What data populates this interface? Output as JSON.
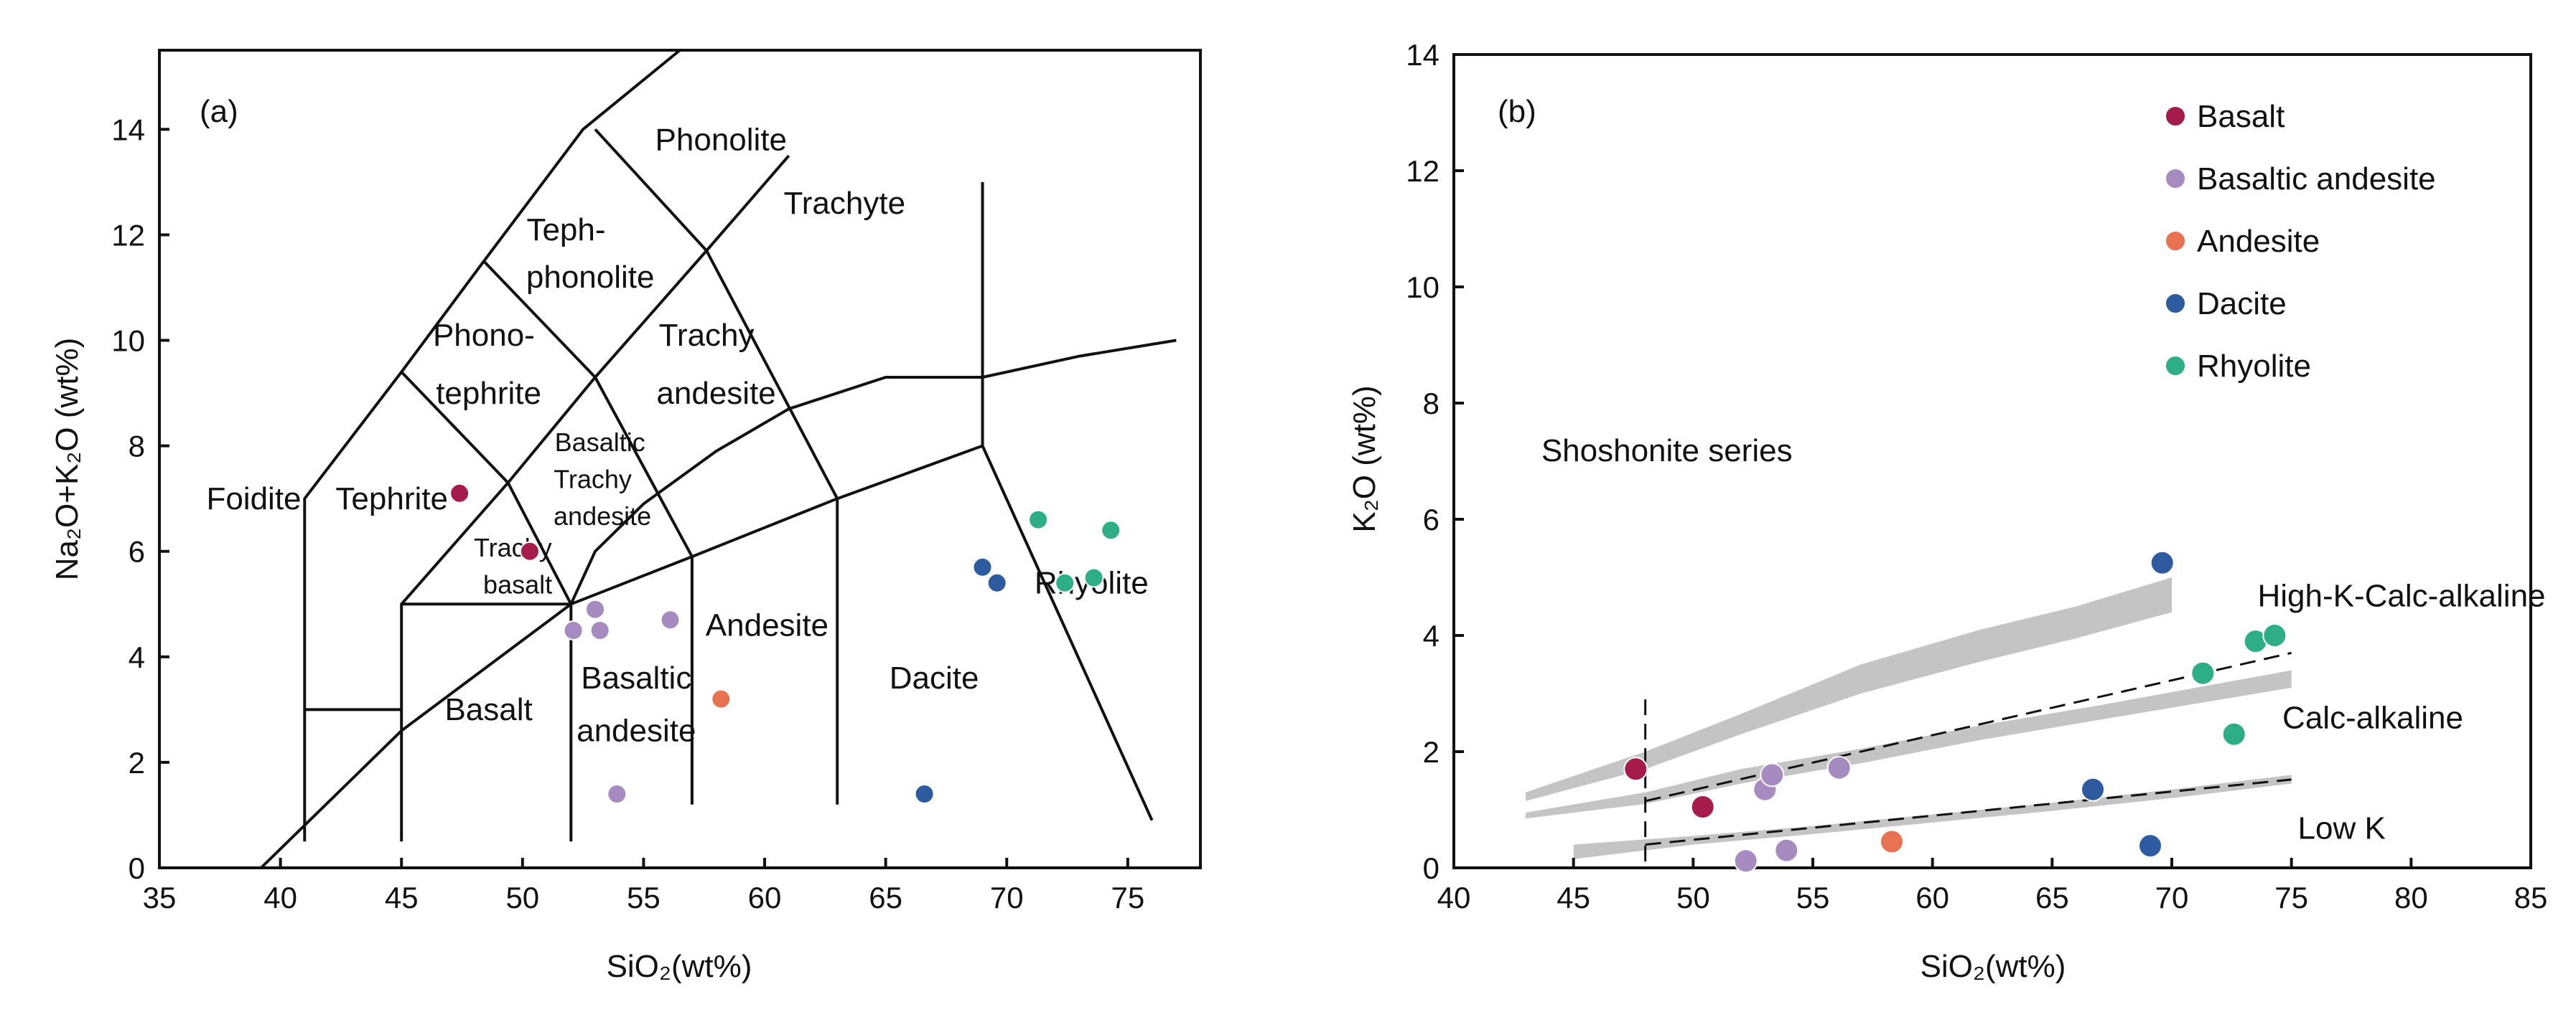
{
  "chart_data": [
    {
      "type": "scatter",
      "panel_label": "(a)",
      "xlabel": "SiO₂(wt%)",
      "ylabel": "Na₂O+K₂O (wt%)",
      "xlim": [
        35,
        78
      ],
      "ylim": [
        0,
        15.5
      ],
      "xticks": [
        35,
        40,
        45,
        50,
        55,
        60,
        65,
        70,
        75
      ],
      "yticks": [
        0,
        2,
        4,
        6,
        8,
        10,
        12,
        14
      ],
      "field_labels": [
        {
          "id": "foidite",
          "text": "Foidite",
          "x": 38.9,
          "y": 6.8,
          "small": false
        },
        {
          "id": "tephrite",
          "text": "Tephrite",
          "x": 44.6,
          "y": 6.8,
          "small": false
        },
        {
          "id": "phonolite",
          "text": "Phonolite",
          "x": 58.2,
          "y": 13.6,
          "small": false
        },
        {
          "id": "teph_a",
          "text": "Teph-",
          "x": 51.8,
          "y": 11.9,
          "small": false
        },
        {
          "id": "teph_b",
          "text": "phonolite",
          "x": 52.8,
          "y": 11.0,
          "small": false
        },
        {
          "id": "trachyte",
          "text": "Trachyte",
          "x": 63.3,
          "y": 12.4,
          "small": false
        },
        {
          "id": "phono_a",
          "text": "Phono-",
          "x": 48.4,
          "y": 9.9,
          "small": false
        },
        {
          "id": "phono_b",
          "text": "tephrite",
          "x": 48.6,
          "y": 8.8,
          "small": false
        },
        {
          "id": "trachyand_a",
          "text": "Trachy",
          "x": 57.6,
          "y": 9.9,
          "small": false
        },
        {
          "id": "trachyand_b",
          "text": "andesite",
          "x": 58.0,
          "y": 8.8,
          "small": false
        },
        {
          "id": "bta_a",
          "text": "Basaltic",
          "x": 53.2,
          "y": 7.9,
          "small": true
        },
        {
          "id": "bta_b",
          "text": "Trachy",
          "x": 52.9,
          "y": 7.2,
          "small": true
        },
        {
          "id": "bta_c",
          "text": "andesite",
          "x": 53.3,
          "y": 6.5,
          "small": true
        },
        {
          "id": "tb_a",
          "text": "Trachy",
          "x": 49.6,
          "y": 5.9,
          "small": true
        },
        {
          "id": "tb_b",
          "text": "basalt",
          "x": 49.8,
          "y": 5.2,
          "small": true
        },
        {
          "id": "basalt",
          "text": "Basalt",
          "x": 48.6,
          "y": 2.8,
          "small": false
        },
        {
          "id": "band_a",
          "text": "Basaltic",
          "x": 54.7,
          "y": 3.4,
          "small": false
        },
        {
          "id": "band_b",
          "text": "andesite",
          "x": 54.7,
          "y": 2.4,
          "small": false
        },
        {
          "id": "andesite",
          "text": "Andesite",
          "x": 60.1,
          "y": 4.4,
          "small": false
        },
        {
          "id": "dacite",
          "text": "Dacite",
          "x": 67.0,
          "y": 3.4,
          "small": false
        },
        {
          "id": "rhyolite",
          "text": "Rhyolite",
          "x": 73.5,
          "y": 5.2,
          "small": false
        }
      ],
      "series": [
        {
          "name": "Basalt",
          "color": "#a51c4b",
          "points": [
            [
              47.4,
              7.1
            ],
            [
              50.3,
              6.0
            ]
          ]
        },
        {
          "name": "Basaltic andesite",
          "color": "#a58bbf",
          "points": [
            [
              52.1,
              4.5
            ],
            [
              53.0,
              4.9
            ],
            [
              53.2,
              4.5
            ],
            [
              56.1,
              4.7
            ],
            [
              53.9,
              1.4
            ]
          ]
        },
        {
          "name": "Andesite",
          "color": "#e87352",
          "points": [
            [
              58.2,
              3.2
            ]
          ]
        },
        {
          "name": "Dacite",
          "color": "#2e5a9f",
          "points": [
            [
              69.0,
              5.7
            ],
            [
              69.6,
              5.4
            ],
            [
              66.6,
              1.4
            ]
          ]
        },
        {
          "name": "Rhyolite",
          "color": "#2eae85",
          "points": [
            [
              71.3,
              6.6
            ],
            [
              74.3,
              6.4
            ],
            [
              72.4,
              5.4
            ],
            [
              73.6,
              5.5
            ]
          ]
        }
      ]
    },
    {
      "type": "scatter",
      "panel_label": "(b)",
      "xlabel": "SiO₂(wt%)",
      "ylabel": "K₂O (wt%)",
      "xlim": [
        40,
        85
      ],
      "ylim": [
        0,
        14
      ],
      "xticks": [
        40,
        45,
        50,
        55,
        60,
        65,
        70,
        75,
        80,
        85
      ],
      "yticks": [
        0,
        2,
        4,
        6,
        8,
        10,
        12,
        14
      ],
      "series_labels": [
        {
          "id": "shoshonite",
          "text": "Shoshonite series",
          "x": 48.9,
          "y": 7.0
        },
        {
          "id": "highk",
          "text": "High-K-Calc-alkaline",
          "x": 79.6,
          "y": 4.5
        },
        {
          "id": "calcalk",
          "text": "Calc-alkaline",
          "x": 78.4,
          "y": 2.4
        },
        {
          "id": "lowk",
          "text": "Low K",
          "x": 77.1,
          "y": 0.5
        }
      ],
      "legend": {
        "position": "top-right",
        "entries": [
          "Basalt",
          "Basaltic andesite",
          "Andesite",
          "Dacite",
          "Rhyolite"
        ]
      },
      "series": [
        {
          "name": "Basalt",
          "color": "#a51c4b",
          "points": [
            [
              47.6,
              1.7
            ],
            [
              50.4,
              1.05
            ]
          ]
        },
        {
          "name": "Basaltic andesite",
          "color": "#a58bbf",
          "points": [
            [
              53.0,
              1.35
            ],
            [
              53.3,
              1.6
            ],
            [
              56.1,
              1.72
            ],
            [
              52.2,
              0.12
            ],
            [
              53.9,
              0.3
            ]
          ]
        },
        {
          "name": "Andesite",
          "color": "#e87352",
          "points": [
            [
              58.3,
              0.45
            ]
          ]
        },
        {
          "name": "Dacite",
          "color": "#2e5a9f",
          "points": [
            [
              69.6,
              5.25
            ],
            [
              66.7,
              1.35
            ],
            [
              69.1,
              0.38
            ]
          ]
        },
        {
          "name": "Rhyolite",
          "color": "#2eae85",
          "points": [
            [
              73.5,
              3.9
            ],
            [
              74.3,
              4.0
            ],
            [
              71.3,
              3.35
            ],
            [
              72.6,
              2.3
            ]
          ]
        }
      ]
    }
  ]
}
